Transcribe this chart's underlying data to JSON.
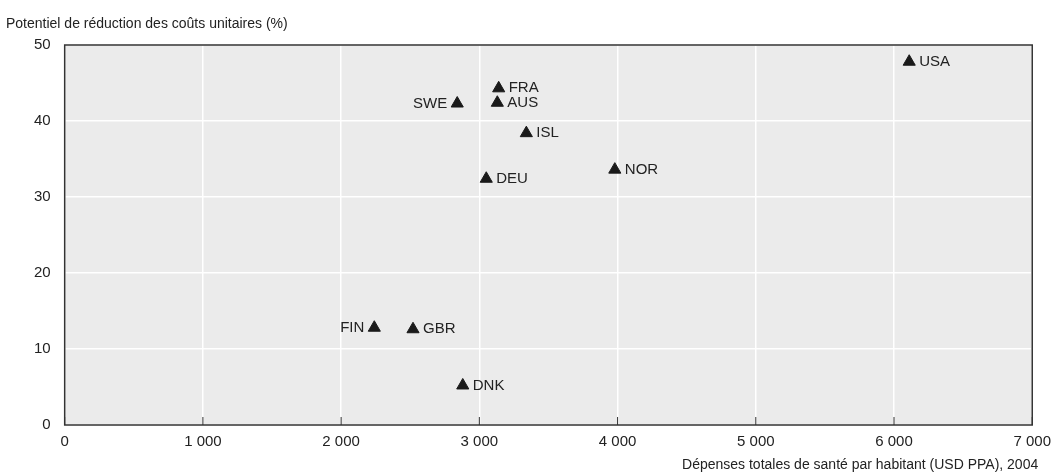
{
  "chart_data": {
    "type": "scatter",
    "xlabel": "Dépenses totales de santé par habitant (USD PPA), 2004",
    "ylabel": "Potentiel de réduction des coûts unitaires (%)",
    "x": [
      6110,
      3140,
      3130,
      2840,
      3340,
      3980,
      3050,
      2240,
      2520,
      2880
    ],
    "values": [
      47.8,
      44.3,
      42.4,
      42.3,
      38.4,
      33.6,
      32.4,
      12.8,
      12.6,
      5.2
    ],
    "color": "#1a1a1a",
    "marker": "triangle",
    "annotations": [
      {
        "text": "USA",
        "x": 6110,
        "y": 47.8
      },
      {
        "text": "FRA",
        "x": 3140,
        "y": 44.3
      },
      {
        "text": "AUS",
        "x": 3130,
        "y": 42.4
      },
      {
        "text": "SWE",
        "x": 2840,
        "y": 42.3
      },
      {
        "text": "ISL",
        "x": 3340,
        "y": 38.4
      },
      {
        "text": "NOR",
        "x": 3980,
        "y": 33.6
      },
      {
        "text": "DEU",
        "x": 3050,
        "y": 32.4
      },
      {
        "text": "FIN",
        "x": 2240,
        "y": 12.8
      },
      {
        "text": "GBR",
        "x": 2520,
        "y": 12.6
      },
      {
        "text": "DNK",
        "x": 2880,
        "y": 5.2
      }
    ],
    "xlim": [
      0,
      7000
    ],
    "xticks": [
      {
        "value": 0,
        "label": "0"
      },
      {
        "value": 1000,
        "label": "1 000"
      },
      {
        "value": 2000,
        "label": "2 000"
      },
      {
        "value": 3000,
        "label": "3 000"
      },
      {
        "value": 4000,
        "label": "4 000"
      },
      {
        "value": 5000,
        "label": "5 000"
      },
      {
        "value": 6000,
        "label": "6 000"
      },
      {
        "value": 7000,
        "label": "7 000"
      }
    ],
    "ylim": [
      0,
      50
    ],
    "yticks": [
      0,
      10,
      20,
      30,
      40,
      50
    ],
    "grid": true
  }
}
